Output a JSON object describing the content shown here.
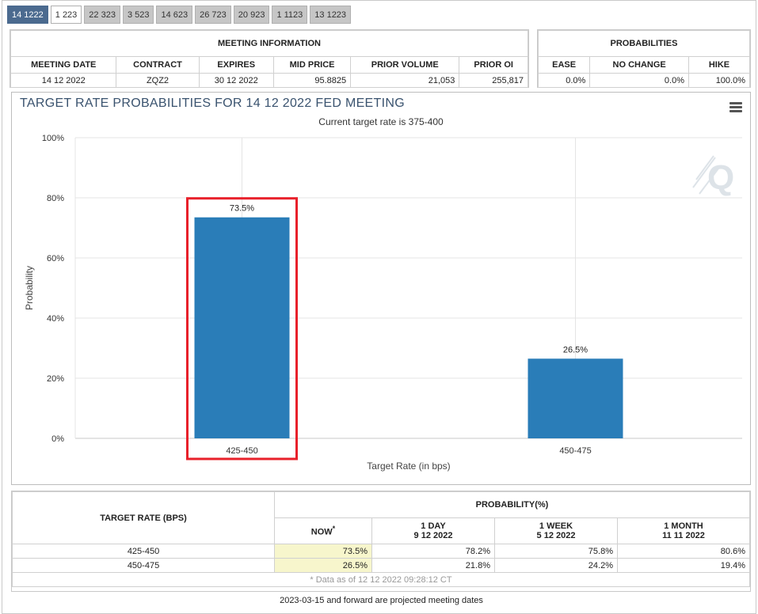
{
  "tabs": [
    "14 1222",
    "1 223",
    "22 323",
    "3 523",
    "14 623",
    "26 723",
    "20 923",
    "1 1123",
    "13 1223"
  ],
  "meeting_info": {
    "title": "MEETING INFORMATION",
    "headers": [
      "MEETING DATE",
      "CONTRACT",
      "EXPIRES",
      "MID PRICE",
      "PRIOR VOLUME",
      "PRIOR OI"
    ],
    "row": [
      "14 12 2022",
      "ZQZ2",
      "30 12 2022",
      "95.8825",
      "21,053",
      "255,817"
    ]
  },
  "probabilities": {
    "title": "PROBABILITIES",
    "headers": [
      "EASE",
      "NO CHANGE",
      "HIKE"
    ],
    "row": [
      "0.0%",
      "0.0%",
      "100.0%"
    ]
  },
  "chart": {
    "title": "TARGET RATE PROBABILITIES FOR 14 12 2022 FED MEETING",
    "subtitle": "Current target rate is 375-400"
  },
  "chart_data": {
    "type": "bar",
    "categories": [
      "425-450",
      "450-475"
    ],
    "values": [
      73.5,
      26.5
    ],
    "data_labels": [
      "73.5%",
      "26.5%"
    ],
    "xlabel": "Target Rate (in bps)",
    "ylabel": "Probability",
    "ylim": [
      0,
      100
    ],
    "yticks": [
      "0%",
      "20%",
      "40%",
      "60%",
      "80%",
      "100%"
    ],
    "bar_color": "#2a7db8",
    "highlight_color": "#e8202a",
    "highlighted_category": "425-450",
    "grid": true
  },
  "prob_table": {
    "target_header": "TARGET RATE (BPS)",
    "prob_header": "PROBABILITY(%)",
    "now_label": "NOW",
    "now_mark": "*",
    "columns": [
      {
        "line1": "1 DAY",
        "line2": "9 12 2022"
      },
      {
        "line1": "1 WEEK",
        "line2": "5 12 2022"
      },
      {
        "line1": "1 MONTH",
        "line2": "11 11 2022"
      }
    ],
    "rows": [
      {
        "rate": "425-450",
        "now": "73.5%",
        "vals": [
          "78.2%",
          "75.8%",
          "80.6%"
        ]
      },
      {
        "rate": "450-475",
        "now": "26.5%",
        "vals": [
          "21.8%",
          "24.2%",
          "19.4%"
        ]
      }
    ],
    "note": "* Data as of 12 12 2022 09:28:12 CT"
  },
  "footer": "2023-03-15 and forward are projected meeting dates"
}
